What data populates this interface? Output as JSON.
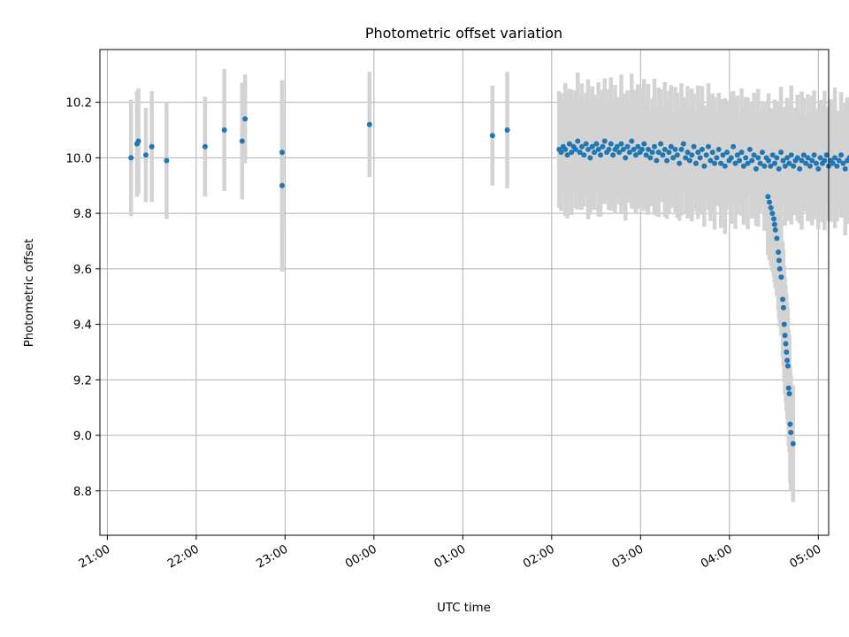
{
  "chart_data": {
    "type": "scatter",
    "title": "Photometric offset variation",
    "xlabel": "UTC time",
    "ylabel": "Photometric offset",
    "x_unit": "hours (UTC)",
    "xlim": [
      "20:55",
      "05:07"
    ],
    "ylim": [
      8.64,
      10.39
    ],
    "grid": true,
    "x_ticks": [
      "21:00",
      "22:00",
      "23:00",
      "00:00",
      "01:00",
      "02:00",
      "03:00",
      "04:00",
      "05:00"
    ],
    "y_ticks": [
      "8.8",
      "9.0",
      "9.2",
      "9.4",
      "9.6",
      "9.8",
      "10.0",
      "10.2"
    ],
    "colors": {
      "points": "#1f77b4",
      "errorbars": "#d3d3d3",
      "grid": "#b0b0b0"
    },
    "series": [
      {
        "points": [
          {
            "t": "21:16",
            "y": 10.0,
            "err": 0.21
          },
          {
            "t": "21:20",
            "y": 10.05,
            "err": 0.19
          },
          {
            "t": "21:21",
            "y": 10.06,
            "err": 0.19
          },
          {
            "t": "21:26",
            "y": 10.01,
            "err": 0.17
          },
          {
            "t": "21:30",
            "y": 10.04,
            "err": 0.2
          },
          {
            "t": "21:40",
            "y": 9.99,
            "err": 0.21
          },
          {
            "t": "22:06",
            "y": 10.04,
            "err": 0.18
          },
          {
            "t": "22:19",
            "y": 10.1,
            "err": 0.22
          },
          {
            "t": "22:31",
            "y": 10.06,
            "err": 0.21
          },
          {
            "t": "22:33",
            "y": 10.14,
            "err": 0.16
          },
          {
            "t": "22:58",
            "y": 10.02,
            "err": 0.26
          },
          {
            "t": "22:58",
            "y": 9.9,
            "err": 0.31
          },
          {
            "t": "23:57",
            "y": 10.12,
            "err": 0.19
          },
          {
            "t": "01:20",
            "y": 10.08,
            "err": 0.18
          },
          {
            "t": "01:30",
            "y": 10.1,
            "err": 0.21
          }
        ]
      },
      {
        "x_start": "02:05",
        "x_step_min": 1.4,
        "err": 0.21,
        "values": [
          10.03,
          10.02,
          10.04,
          10.03,
          10.01,
          10.05,
          10.02,
          10.04,
          10.03,
          10.06,
          10.02,
          10.04,
          10.01,
          10.05,
          10.03,
          10.0,
          10.04,
          10.02,
          10.05,
          10.03,
          10.01,
          10.04,
          10.06,
          10.02,
          10.03,
          10.05,
          10.01,
          10.03,
          10.04,
          10.02,
          10.05,
          10.03,
          10.0,
          10.04,
          10.02,
          10.06,
          10.03,
          10.01,
          10.04,
          10.02,
          10.03,
          10.05,
          10.01,
          10.03,
          10.0,
          10.02,
          10.04,
          9.99,
          10.02,
          10.05,
          10.01,
          10.03,
          9.99,
          10.02,
          10.04,
          10.0,
          10.03,
          10.01,
          9.98,
          10.03,
          10.05,
          10.0,
          10.02,
          9.99,
          10.01,
          10.04,
          9.98,
          10.02,
          10.0,
          10.03,
          9.97,
          10.01,
          10.04,
          9.99,
          10.02,
          9.98,
          10.0,
          10.03,
          9.98,
          10.01,
          9.97,
          10.02,
          9.99,
          10.0,
          10.04,
          9.98,
          10.01,
          9.99,
          10.02,
          9.97,
          10.0,
          9.98,
          10.03,
          9.99,
          10.01,
          9.96,
          10.0,
          9.98,
          10.02,
          9.97,
          10.0,
          9.99,
          9.97,
          10.01,
          9.98,
          10.0,
          9.96,
          10.02,
          9.99,
          9.97,
          10.0,
          9.98,
          10.01,
          9.97,
          9.99,
          10.0,
          9.96,
          9.99,
          10.01,
          9.98,
          10.0,
          9.97,
          9.99,
          10.01,
          9.98,
          9.96,
          10.0,
          9.98,
          9.99,
          10.01,
          9.97,
          9.99,
          9.98,
          10.0,
          9.97,
          9.99,
          10.01,
          9.98,
          9.96,
          9.99,
          10.0,
          9.97,
          9.98,
          10.0,
          9.99,
          9.97,
          9.98,
          10.0,
          9.96,
          9.98,
          9.99,
          9.97,
          9.96,
          9.98,
          9.95,
          9.97,
          9.96,
          9.94,
          9.95,
          9.93,
          9.94,
          9.92,
          9.91,
          9.9,
          9.89,
          9.88
        ]
      },
      {
        "points": [
          {
            "t": "04:26",
            "y": 9.86,
            "err": 0.21
          },
          {
            "t": "04:27",
            "y": 9.84,
            "err": 0.21
          },
          {
            "t": "04:28",
            "y": 9.82,
            "err": 0.21
          },
          {
            "t": "04:29",
            "y": 9.8,
            "err": 0.21
          },
          {
            "t": "04:30",
            "y": 9.78,
            "err": 0.21
          },
          {
            "t": "04:30.5",
            "y": 9.76,
            "err": 0.21
          },
          {
            "t": "04:31",
            "y": 9.74,
            "err": 0.21
          },
          {
            "t": "04:32",
            "y": 9.71,
            "err": 0.21
          },
          {
            "t": "04:33",
            "y": 9.66,
            "err": 0.21
          },
          {
            "t": "04:33.5",
            "y": 9.63,
            "err": 0.21
          },
          {
            "t": "04:34",
            "y": 9.6,
            "err": 0.21
          },
          {
            "t": "04:35",
            "y": 9.57,
            "err": 0.21
          },
          {
            "t": "04:36",
            "y": 9.49,
            "err": 0.21
          },
          {
            "t": "04:36.5",
            "y": 9.46,
            "err": 0.21
          },
          {
            "t": "04:37",
            "y": 9.4,
            "err": 0.21
          },
          {
            "t": "04:37.5",
            "y": 9.36,
            "err": 0.21
          },
          {
            "t": "04:38",
            "y": 9.33,
            "err": 0.21
          },
          {
            "t": "04:38.5",
            "y": 9.3,
            "err": 0.21
          },
          {
            "t": "04:39",
            "y": 9.27,
            "err": 0.21
          },
          {
            "t": "04:39.5",
            "y": 9.25,
            "err": 0.21
          },
          {
            "t": "04:40",
            "y": 9.17,
            "err": 0.21
          },
          {
            "t": "04:40.5",
            "y": 9.15,
            "err": 0.21
          },
          {
            "t": "04:41",
            "y": 9.04,
            "err": 0.21
          },
          {
            "t": "04:41.5",
            "y": 9.01,
            "err": 0.21
          },
          {
            "t": "04:43",
            "y": 8.97,
            "err": 0.21
          }
        ]
      }
    ]
  }
}
